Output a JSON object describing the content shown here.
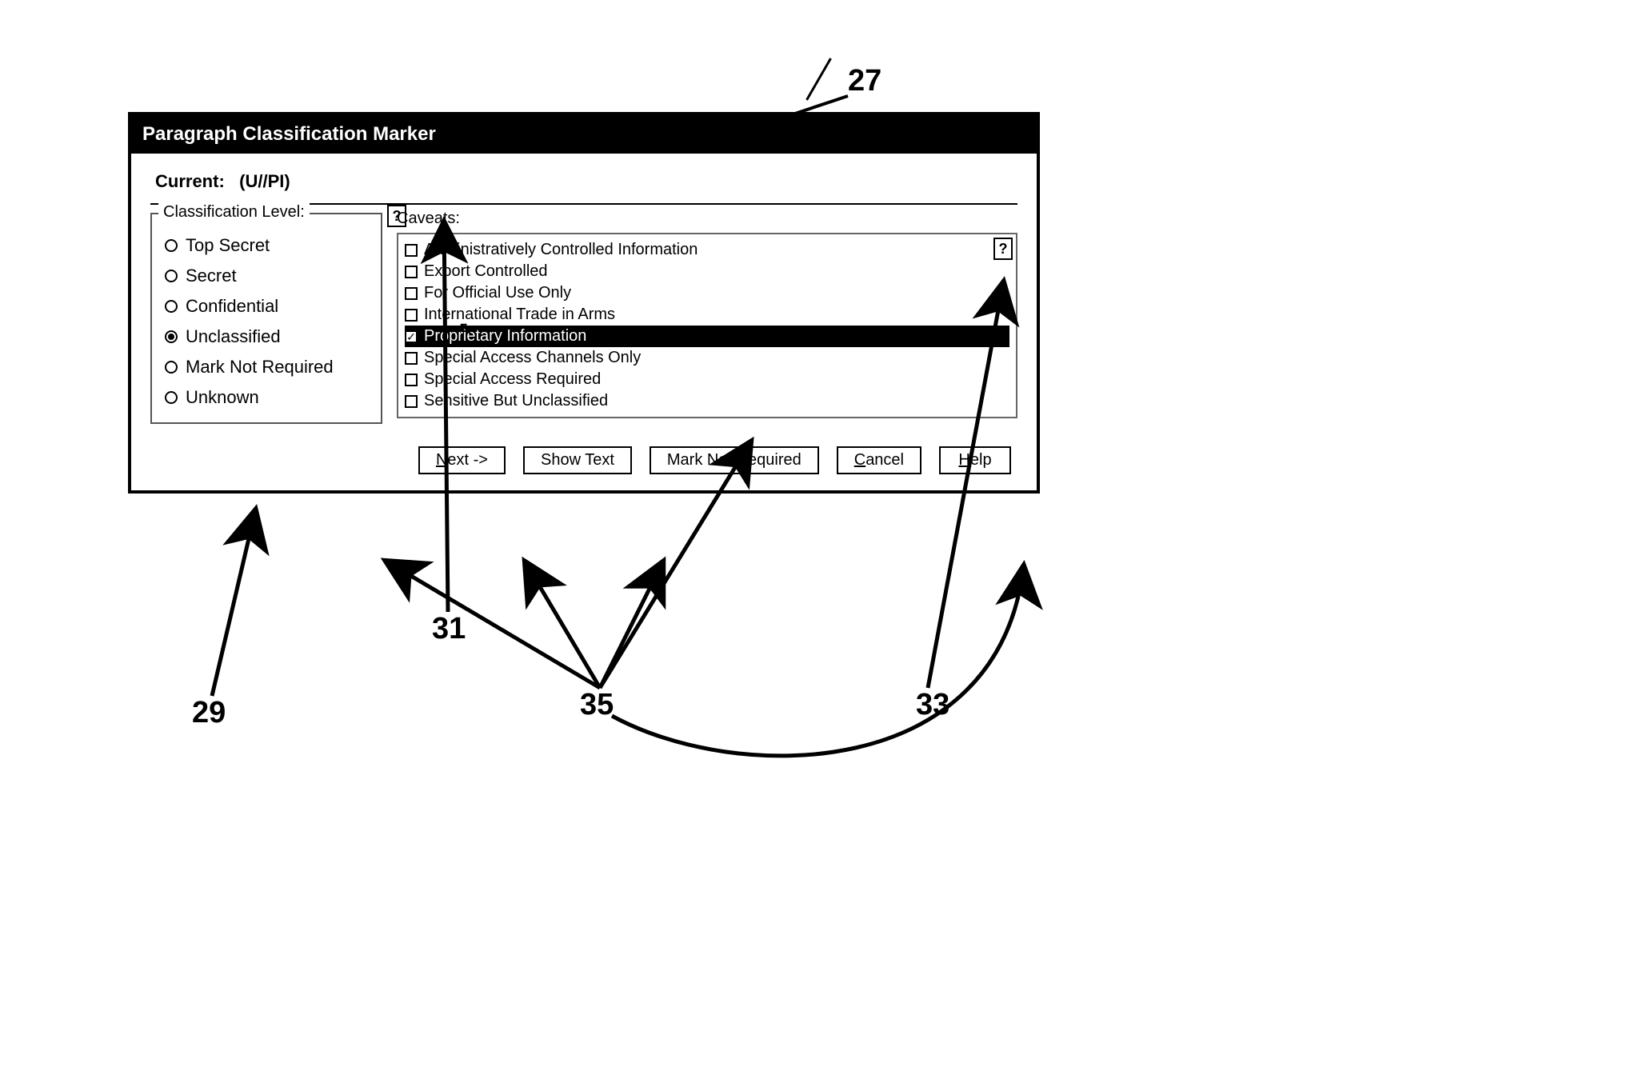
{
  "figure": {
    "reference_numbers": {
      "dialog": "27",
      "classification_panel": "29",
      "left_help": "31",
      "right_help": "33",
      "buttons": "35"
    }
  },
  "dialog": {
    "title": "Paragraph Classification Marker",
    "current_label": "Current:",
    "current_value": "(U//PI)",
    "classification": {
      "legend": "Classification Level:",
      "options": [
        {
          "label": "Top Secret",
          "selected": false
        },
        {
          "label": "Secret",
          "selected": false
        },
        {
          "label": "Confidential",
          "selected": false
        },
        {
          "label": "Unclassified",
          "selected": true
        },
        {
          "label": "Mark Not Required",
          "selected": false
        },
        {
          "label": "Unknown",
          "selected": false
        }
      ],
      "help_label": "?"
    },
    "caveats": {
      "legend": "Caveats:",
      "help_label": "?",
      "items": [
        {
          "label": "Administratively Controlled Information",
          "checked": false,
          "highlight": false
        },
        {
          "label": "Export Controlled",
          "checked": false,
          "highlight": false
        },
        {
          "label": "For Official Use Only",
          "checked": false,
          "highlight": false
        },
        {
          "label": "International Trade in Arms",
          "checked": false,
          "highlight": false
        },
        {
          "label": "Proprietary Information",
          "checked": true,
          "highlight": true
        },
        {
          "label": "Special Access Channels Only",
          "checked": false,
          "highlight": false
        },
        {
          "label": "Special Access Required",
          "checked": false,
          "highlight": false
        },
        {
          "label": "Sensitive But Unclassified",
          "checked": false,
          "highlight": false
        }
      ]
    },
    "buttons": {
      "next": "Next ->",
      "show_text": "Show Text",
      "mark_not_required": "Mark Not Required",
      "cancel": "Cancel",
      "help": "Help"
    }
  },
  "style": {
    "arrow_color": "#000000",
    "arrow_width": 5,
    "dialog_border_color": "#000000",
    "title_bg": "#000000",
    "title_color": "#ffffff",
    "highlight_bg": "#000000",
    "highlight_color": "#ffffff",
    "font_family": "Arial, sans-serif"
  }
}
